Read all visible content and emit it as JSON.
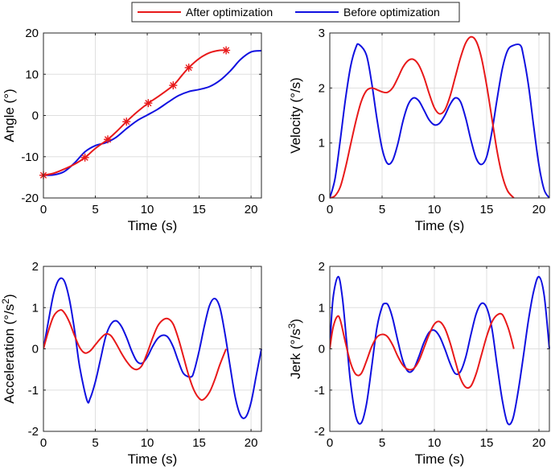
{
  "legend": {
    "placement": "top-center",
    "entries": [
      {
        "label": "After optimization",
        "color": "#e8191a"
      },
      {
        "label": "Before optimization",
        "color": "#1010e0"
      }
    ]
  },
  "chart_data": [
    {
      "type": "line",
      "xlabel": "Time (s)",
      "ylabel": "Angle (°)",
      "xlim": [
        0,
        21
      ],
      "ylim": [
        -20,
        20
      ],
      "xticks": [
        0,
        5,
        10,
        15,
        20
      ],
      "yticks": [
        -20,
        -10,
        0,
        10,
        20
      ],
      "grid": true,
      "series": [
        {
          "name": "After optimization",
          "color": "#e8191a",
          "x": [
            0,
            1,
            2,
            3,
            4,
            5,
            6.2,
            7,
            8,
            9,
            10.1,
            11,
            12.5,
            13.3,
            14,
            15,
            16,
            17,
            17.6
          ],
          "y": [
            -14.5,
            -14.0,
            -13.0,
            -11.8,
            -10.2,
            -8.0,
            -5.8,
            -4.0,
            -1.5,
            0.8,
            3.0,
            4.5,
            7.3,
            9.6,
            11.6,
            13.8,
            15.2,
            15.8,
            15.8
          ],
          "markers": {
            "x": [
              0,
              4,
              6.2,
              8,
              10.1,
              12.5,
              14,
              17.6
            ],
            "y": [
              -14.5,
              -10.2,
              -5.8,
              -1.5,
              3.0,
              7.3,
              11.6,
              15.8
            ]
          }
        },
        {
          "name": "Before optimization",
          "color": "#1010e0",
          "x": [
            0,
            1,
            2,
            3,
            4,
            5,
            6,
            7,
            8,
            9,
            10,
            11,
            12,
            13,
            14,
            15,
            16,
            17,
            18,
            19,
            20,
            21
          ],
          "y": [
            -14.5,
            -14.4,
            -13.6,
            -11.5,
            -8.8,
            -7.3,
            -6.6,
            -5.3,
            -3.2,
            -1.3,
            0.1,
            1.5,
            3.2,
            4.8,
            5.8,
            6.3,
            7.0,
            8.5,
            10.8,
            13.6,
            15.4,
            15.7
          ]
        }
      ]
    },
    {
      "type": "line",
      "xlabel": "Time (s)",
      "ylabel": "Velocity (°/s)",
      "xlim": [
        0,
        21
      ],
      "ylim": [
        0,
        3
      ],
      "xticks": [
        0,
        5,
        10,
        15,
        20
      ],
      "yticks": [
        0,
        1,
        2,
        3
      ],
      "grid": true,
      "series": [
        {
          "name": "After optimization",
          "color": "#e8191a",
          "x": [
            0,
            0.5,
            1,
            1.5,
            2,
            2.5,
            3,
            3.5,
            4,
            4.5,
            5,
            5.5,
            6,
            6.5,
            7,
            7.5,
            8,
            8.5,
            9,
            9.5,
            10,
            10.5,
            11,
            11.5,
            12,
            12.5,
            13,
            13.5,
            14,
            14.5,
            15,
            15.5,
            16,
            16.5,
            17,
            17.6
          ],
          "y": [
            0,
            0.04,
            0.2,
            0.55,
            0.98,
            1.4,
            1.75,
            1.95,
            2.0,
            1.97,
            1.93,
            1.92,
            2.0,
            2.18,
            2.38,
            2.5,
            2.52,
            2.42,
            2.2,
            1.9,
            1.64,
            1.53,
            1.6,
            1.85,
            2.2,
            2.55,
            2.82,
            2.93,
            2.85,
            2.55,
            2.05,
            1.45,
            0.85,
            0.4,
            0.13,
            0
          ]
        },
        {
          "name": "Before optimization",
          "color": "#1010e0",
          "x": [
            0,
            0.5,
            1,
            1.5,
            2,
            2.5,
            2.8,
            3.5,
            4,
            4.5,
            5,
            5.5,
            6,
            6.5,
            7,
            7.5,
            8,
            8.5,
            9,
            9.5,
            10,
            10.5,
            11,
            11.5,
            12,
            12.5,
            13,
            13.5,
            14,
            14.5,
            15,
            15.5,
            16,
            16.5,
            17,
            17.5,
            18.2,
            18.5,
            19,
            19.5,
            20,
            20.5,
            21
          ],
          "y": [
            0,
            0.35,
            1.05,
            1.8,
            2.4,
            2.74,
            2.79,
            2.6,
            2.1,
            1.45,
            0.9,
            0.63,
            0.68,
            0.98,
            1.4,
            1.7,
            1.82,
            1.77,
            1.6,
            1.42,
            1.33,
            1.36,
            1.5,
            1.7,
            1.82,
            1.75,
            1.45,
            1.05,
            0.72,
            0.61,
            0.75,
            1.2,
            1.8,
            2.35,
            2.68,
            2.77,
            2.78,
            2.6,
            2.05,
            1.3,
            0.6,
            0.15,
            0
          ]
        }
      ]
    },
    {
      "type": "line",
      "xlabel": "Time (s)",
      "ylabel": "Acceleration (°/s²)",
      "xlim": [
        0,
        21
      ],
      "ylim": [
        -2,
        2
      ],
      "xticks": [
        0,
        5,
        10,
        15,
        20
      ],
      "yticks": [
        -2,
        -1,
        0,
        1,
        2
      ],
      "grid": true,
      "series": [
        {
          "name": "After optimization",
          "color": "#e8191a",
          "x": [
            0,
            0.5,
            1,
            1.6,
            2,
            2.5,
            3,
            3.5,
            4,
            4.5,
            5,
            5.5,
            6,
            6.5,
            7,
            7.5,
            8,
            8.5,
            9,
            9.5,
            10,
            10.5,
            11,
            11.5,
            12,
            12.5,
            13,
            13.5,
            14,
            14.5,
            15,
            15.4,
            16,
            16.5,
            17,
            17.6
          ],
          "y": [
            0,
            0.45,
            0.8,
            0.94,
            0.88,
            0.65,
            0.32,
            0.03,
            -0.1,
            -0.05,
            0.1,
            0.25,
            0.36,
            0.32,
            0.13,
            -0.1,
            -0.3,
            -0.45,
            -0.5,
            -0.4,
            -0.1,
            0.25,
            0.55,
            0.7,
            0.73,
            0.6,
            0.25,
            -0.2,
            -0.65,
            -1.0,
            -1.2,
            -1.23,
            -1.05,
            -0.75,
            -0.38,
            0
          ]
        },
        {
          "name": "Before optimization",
          "color": "#1010e0",
          "x": [
            0,
            0.5,
            1,
            1.5,
            2,
            2.5,
            3,
            3.5,
            4.2,
            4.5,
            5,
            5.5,
            6,
            6.5,
            7,
            7.5,
            8,
            8.5,
            9,
            9.5,
            10,
            10.5,
            11,
            11.5,
            12,
            12.5,
            13,
            13.5,
            14.2,
            14.5,
            15,
            15.5,
            16,
            16.5,
            17,
            17.5,
            18,
            18.5,
            19,
            19.5,
            20,
            20.5,
            21
          ],
          "y": [
            0,
            0.7,
            1.35,
            1.68,
            1.65,
            1.2,
            0.45,
            -0.45,
            -1.25,
            -1.2,
            -0.8,
            -0.25,
            0.3,
            0.6,
            0.68,
            0.55,
            0.28,
            -0.05,
            -0.3,
            -0.35,
            -0.2,
            0.05,
            0.25,
            0.33,
            0.28,
            0.05,
            -0.3,
            -0.6,
            -0.68,
            -0.55,
            -0.05,
            0.55,
            1.05,
            1.22,
            1.0,
            0.35,
            -0.45,
            -1.2,
            -1.62,
            -1.65,
            -1.3,
            -0.65,
            0
          ]
        }
      ]
    },
    {
      "type": "line",
      "xlabel": "Time (s)",
      "ylabel": "Jerk (°/s³)",
      "xlim": [
        0,
        21
      ],
      "ylim": [
        -2,
        2
      ],
      "xticks": [
        0,
        5,
        10,
        15,
        20
      ],
      "yticks": [
        -2,
        -1,
        0,
        1,
        2
      ],
      "grid": true,
      "series": [
        {
          "name": "After optimization",
          "color": "#e8191a",
          "x": [
            0,
            0.3,
            0.7,
            1,
            1.5,
            2,
            2.5,
            3,
            3.5,
            4,
            4.5,
            5,
            5.5,
            6,
            6.5,
            7,
            7.5,
            8,
            8.5,
            9,
            9.5,
            10,
            10.5,
            11,
            11.5,
            12,
            12.5,
            13,
            13.5,
            14,
            14.5,
            15,
            15.5,
            16,
            16.5,
            17,
            17.3,
            17.6
          ],
          "y": [
            0,
            0.5,
            0.78,
            0.7,
            0.15,
            -0.35,
            -0.62,
            -0.6,
            -0.3,
            0.05,
            0.28,
            0.35,
            0.3,
            0.1,
            -0.18,
            -0.4,
            -0.5,
            -0.48,
            -0.3,
            0.02,
            0.35,
            0.6,
            0.66,
            0.5,
            0.15,
            -0.3,
            -0.72,
            -0.93,
            -0.9,
            -0.6,
            -0.15,
            0.3,
            0.65,
            0.82,
            0.83,
            0.55,
            0.3,
            0
          ]
        },
        {
          "name": "Before optimization",
          "color": "#1010e0",
          "x": [
            0,
            0.3,
            0.8,
            1.2,
            1.6,
            2,
            2.5,
            3,
            3.5,
            4,
            4.5,
            5,
            5.3,
            5.6,
            6,
            6.5,
            7,
            7.5,
            8,
            8.5,
            9,
            9.5,
            10,
            10.5,
            11,
            11.5,
            12,
            12.5,
            13,
            13.5,
            14,
            14.5,
            15,
            15.5,
            16,
            16.5,
            17,
            17.5,
            18,
            18.5,
            19,
            19.5,
            20,
            20.5,
            21
          ],
          "y": [
            0,
            1.2,
            1.75,
            1.25,
            0.2,
            -0.85,
            -1.65,
            -1.8,
            -1.35,
            -0.45,
            0.5,
            1.02,
            1.1,
            1.05,
            0.75,
            0.2,
            -0.3,
            -0.55,
            -0.5,
            -0.2,
            0.15,
            0.4,
            0.45,
            0.3,
            0.0,
            -0.35,
            -0.6,
            -0.55,
            -0.2,
            0.35,
            0.85,
            1.1,
            1.0,
            0.5,
            -0.4,
            -1.25,
            -1.8,
            -1.7,
            -1.05,
            -0.2,
            0.7,
            1.4,
            1.75,
            1.3,
            0
          ]
        }
      ]
    }
  ]
}
